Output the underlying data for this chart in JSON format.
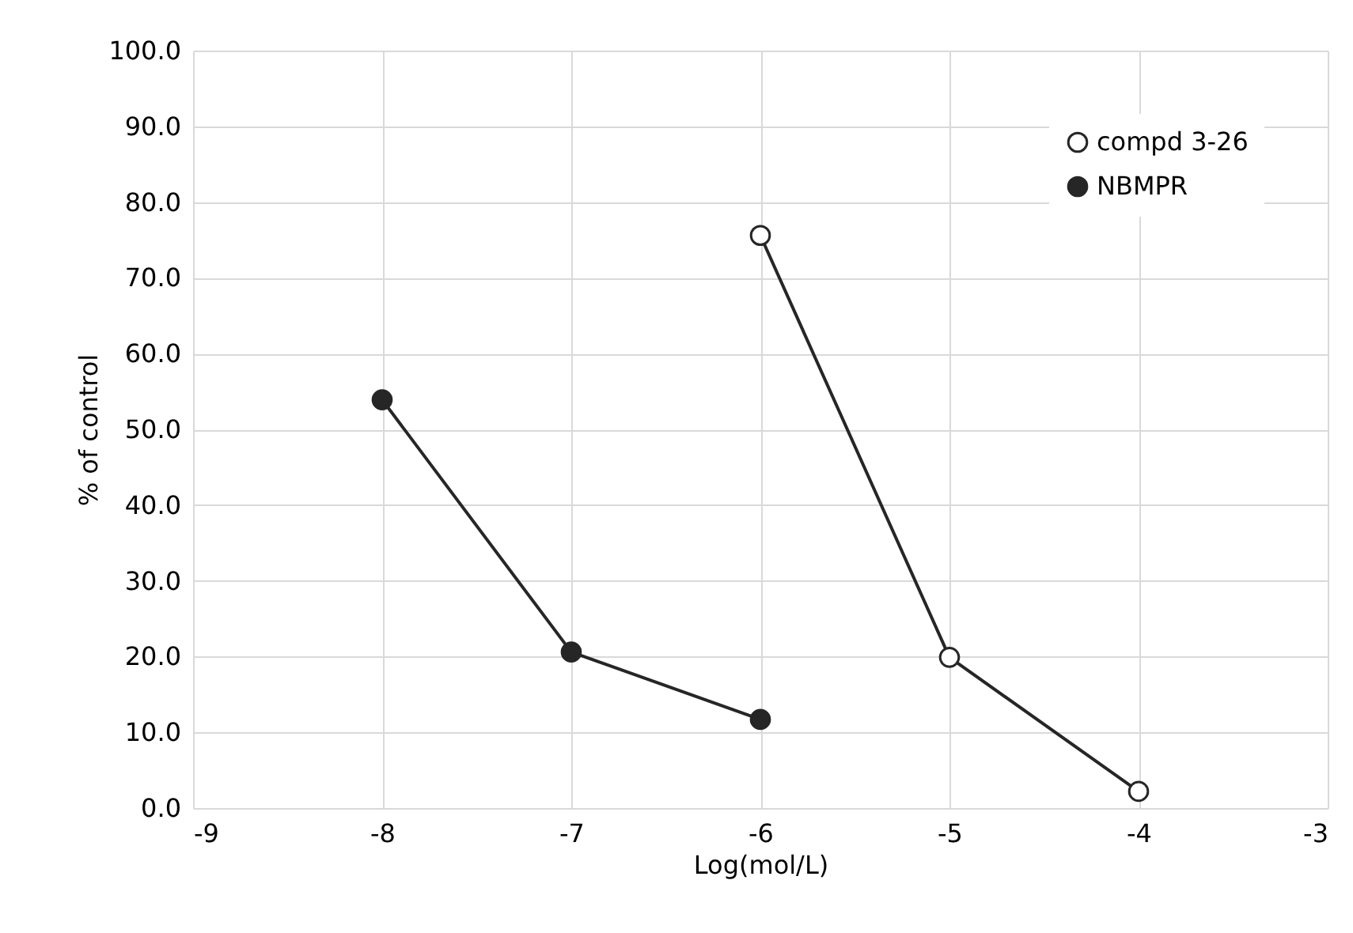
{
  "chart_data": {
    "type": "line",
    "xlabel": "Log(mol/L)",
    "ylabel": "% of control",
    "xlim": [
      -9,
      -3
    ],
    "xticks": [
      -9,
      -8,
      -7,
      -6,
      -5,
      -4,
      -3
    ],
    "ylim": [
      0,
      100
    ],
    "yticks": [
      {
        "value": 0,
        "label": "0.0"
      },
      {
        "value": 10,
        "label": "10.0"
      },
      {
        "value": 20,
        "label": "20.0"
      },
      {
        "value": 30,
        "label": "30.0"
      },
      {
        "value": 40,
        "label": "40.0"
      },
      {
        "value": 50,
        "label": "50.0"
      },
      {
        "value": 60,
        "label": "60.0"
      },
      {
        "value": 70,
        "label": "70.0"
      },
      {
        "value": 80,
        "label": "80.0"
      },
      {
        "value": 90,
        "label": "90.0"
      },
      {
        "value": 100,
        "label": "100.0"
      }
    ],
    "grid": true,
    "legend": "top right",
    "marker": "circle",
    "line_style": "solid",
    "series": [
      {
        "name": "compd 3-26",
        "color": "#ffffff",
        "x": [
          -6,
          -5,
          -4
        ],
        "values": [
          75.6,
          19.9,
          2.2
        ]
      },
      {
        "name": "NBMPR",
        "color": "#262626",
        "x": [
          -8,
          -7,
          -6
        ],
        "values": [
          53.9,
          20.6,
          11.7
        ]
      }
    ]
  }
}
